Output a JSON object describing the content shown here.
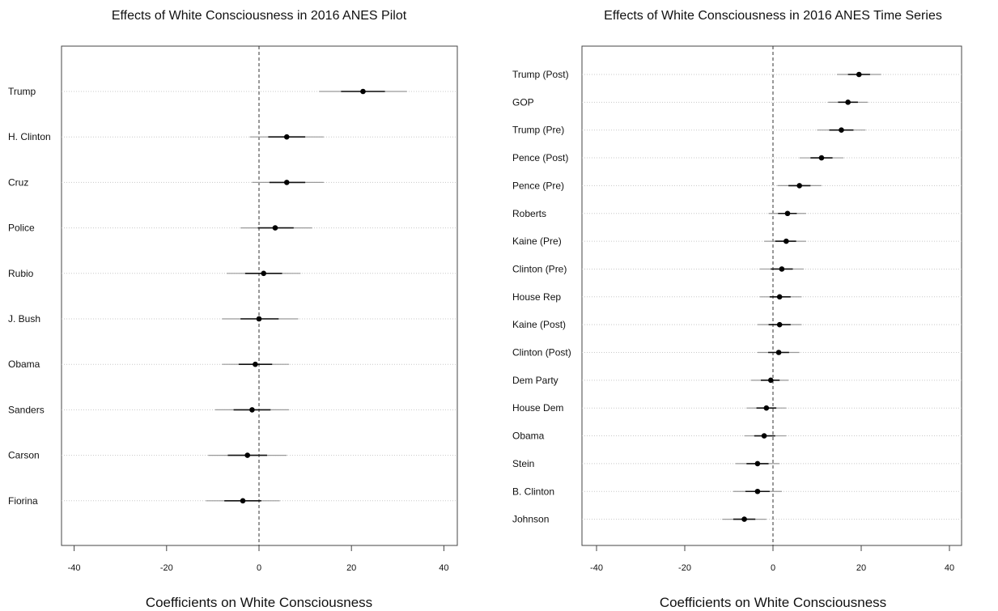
{
  "chart_data": [
    {
      "type": "scatter",
      "title": "Effects of White Consciousness in 2016 ANES Pilot",
      "xlabel": "Coefficients on White Consciousness",
      "ylabel": "",
      "xlim": [
        -43,
        43
      ],
      "xticks": [
        -40,
        -20,
        0,
        20,
        40
      ],
      "reference_line": 0,
      "grid": "horizontal dotted row lines",
      "categories": [
        "Trump",
        "H. Clinton",
        "Cruz",
        "Police",
        "Rubio",
        "J. Bush",
        "Obama",
        "Sanders",
        "Carson",
        "Fiorina"
      ],
      "estimates": [
        22.5,
        6,
        6,
        3.5,
        1,
        0,
        -0.8,
        -1.5,
        -2.5,
        -3.5
      ],
      "ci_low": [
        13,
        -2,
        -1.5,
        -4,
        -7,
        -8,
        -8,
        -9.5,
        -11,
        -11.5
      ],
      "ci_high": [
        32,
        14,
        14,
        11.5,
        9,
        8.5,
        6.5,
        6.5,
        6,
        4.5
      ]
    },
    {
      "type": "scatter",
      "title": "Effects of White Consciousness in 2016 ANES Time Series",
      "xlabel": "Coefficients on White Consciousness",
      "ylabel": "",
      "xlim": [
        -43,
        43
      ],
      "xticks": [
        -40,
        -20,
        0,
        20,
        40
      ],
      "reference_line": 0,
      "grid": "horizontal dotted row lines",
      "categories": [
        "Trump (Post)",
        "GOP",
        "Trump (Pre)",
        "Pence (Post)",
        "Pence (Pre)",
        "Roberts",
        "Kaine (Pre)",
        "Clinton (Pre)",
        "House Rep",
        "Kaine (Post)",
        "Clinton (Post)",
        "Dem Party",
        "House Dem",
        "Obama",
        "Stein",
        "B. Clinton",
        "Johnson"
      ],
      "estimates": [
        19.5,
        17,
        15.5,
        11,
        6,
        3.3,
        3,
        2,
        1.5,
        1.5,
        1.3,
        -0.5,
        -1.5,
        -2,
        -3.5,
        -3.5,
        -6.5
      ],
      "ci_low": [
        14.5,
        12.5,
        10,
        6,
        1,
        -1,
        -2,
        -3,
        -3,
        -3.5,
        -3.5,
        -5,
        -6,
        -6.5,
        -8.5,
        -9,
        -11.5
      ],
      "ci_high": [
        24.5,
        21.5,
        21,
        16,
        11,
        7.5,
        7.5,
        7,
        6.5,
        6.5,
        6,
        3.5,
        3,
        3,
        1.5,
        2,
        -1.5
      ]
    }
  ]
}
